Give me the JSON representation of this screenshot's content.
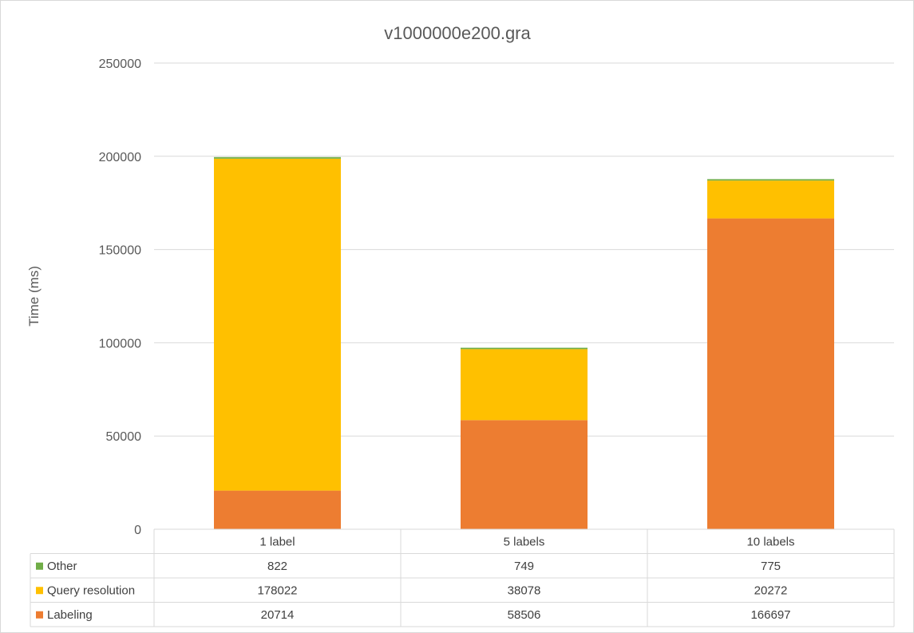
{
  "chart_data": {
    "type": "bar",
    "stacked": true,
    "title": "v1000000e200.gra",
    "ylabel": "Time (ms)",
    "xlabel": "",
    "ylim": [
      0,
      250000
    ],
    "yticks": [
      0,
      50000,
      100000,
      150000,
      200000,
      250000
    ],
    "grid": true,
    "legend": "data-table",
    "categories": [
      "1 label",
      "5 labels",
      "10 labels"
    ],
    "series": [
      {
        "name": "Labeling",
        "color": "#ED7D31",
        "values": [
          20714,
          58506,
          166697
        ]
      },
      {
        "name": "Query resolution",
        "color": "#FFC000",
        "values": [
          178022,
          38078,
          20272
        ]
      },
      {
        "name": "Other",
        "color": "#70AD47",
        "values": [
          822,
          749,
          775
        ]
      }
    ],
    "table_row_order": [
      "Other",
      "Query resolution",
      "Labeling"
    ]
  }
}
